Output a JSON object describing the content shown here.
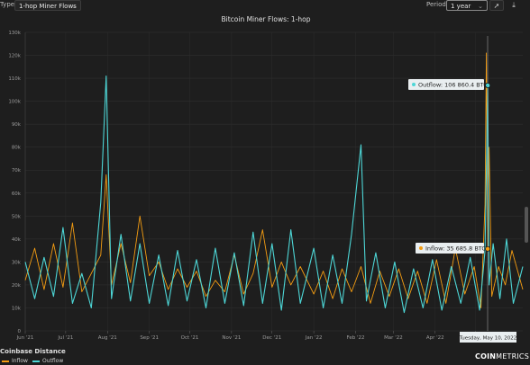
{
  "toolbar": {
    "type_label": "Type:",
    "type_value": "1-hop Miner Flows",
    "period_label": "Period:",
    "period_value": "1 year"
  },
  "legend": {
    "title": "Coinbase Distance",
    "items": [
      {
        "label": "Inflow",
        "color": "#f39c12"
      },
      {
        "label": "Outflow",
        "color": "#4dd6d6"
      }
    ]
  },
  "brand": {
    "prefix": "COIN",
    "suffix": "METRICS"
  },
  "tooltips": {
    "outflow": "Outflow: 106 860.4 BTC",
    "inflow": "Inflow: 35 685.8 BTC",
    "date": "Tuesday, May 10, 2022"
  },
  "chart_data": {
    "type": "line",
    "title": "Bitcoin Miner Flows: 1-hop",
    "xlabel": "",
    "ylabel": "",
    "ylim": [
      0,
      130000
    ],
    "y_ticks": [
      0,
      10000,
      20000,
      30000,
      40000,
      50000,
      60000,
      70000,
      80000,
      90000,
      100000,
      110000,
      120000,
      130000
    ],
    "y_tick_labels": [
      "0",
      "10k",
      "20k",
      "30k",
      "40k",
      "50k",
      "60k",
      "70k",
      "80k",
      "90k",
      "100k",
      "110k",
      "120k",
      "130k"
    ],
    "x_range": [
      "2021-06-01",
      "2022-06-05"
    ],
    "x_tick_dates": [
      "2021-06-01",
      "2021-07-01",
      "2021-08-01",
      "2021-09-01",
      "2021-10-01",
      "2021-11-01",
      "2021-12-01",
      "2022-01-01",
      "2022-02-01",
      "2022-03-01",
      "2022-04-01",
      "2022-05-01"
    ],
    "x_tick_labels": [
      "Jun '21",
      "Jul '21",
      "Aug '21",
      "Sep '21",
      "Oct '21",
      "Nov '21",
      "Dec '21",
      "Jan '22",
      "Feb '22",
      "Mar '22",
      "Apr '22",
      "May '22"
    ],
    "grid": true,
    "legend_position": "bottom-left",
    "series": [
      {
        "name": "Inflow",
        "color": "#f39c12",
        "points": [
          [
            "2021-06-01",
            22000
          ],
          [
            "2021-06-08",
            36000
          ],
          [
            "2021-06-15",
            18000
          ],
          [
            "2021-06-22",
            38000
          ],
          [
            "2021-06-29",
            19000
          ],
          [
            "2021-07-06",
            47000
          ],
          [
            "2021-07-13",
            17000
          ],
          [
            "2021-07-20",
            25000
          ],
          [
            "2021-07-27",
            33000
          ],
          [
            "2021-07-31",
            68000
          ],
          [
            "2021-08-04",
            20000
          ],
          [
            "2021-08-11",
            38000
          ],
          [
            "2021-08-18",
            21000
          ],
          [
            "2021-08-25",
            50000
          ],
          [
            "2021-09-01",
            24000
          ],
          [
            "2021-09-08",
            30000
          ],
          [
            "2021-09-15",
            18000
          ],
          [
            "2021-09-22",
            27000
          ],
          [
            "2021-09-29",
            19000
          ],
          [
            "2021-10-06",
            26000
          ],
          [
            "2021-10-13",
            15000
          ],
          [
            "2021-10-20",
            22000
          ],
          [
            "2021-10-27",
            17000
          ],
          [
            "2021-11-03",
            33000
          ],
          [
            "2021-11-10",
            16000
          ],
          [
            "2021-11-17",
            25000
          ],
          [
            "2021-11-24",
            44000
          ],
          [
            "2021-12-01",
            19000
          ],
          [
            "2021-12-08",
            30000
          ],
          [
            "2021-12-15",
            20000
          ],
          [
            "2021-12-22",
            28000
          ],
          [
            "2022-01-01",
            16000
          ],
          [
            "2022-01-08",
            26000
          ],
          [
            "2022-01-15",
            14000
          ],
          [
            "2022-01-22",
            27000
          ],
          [
            "2022-01-29",
            17000
          ],
          [
            "2022-02-05",
            28000
          ],
          [
            "2022-02-12",
            12000
          ],
          [
            "2022-02-19",
            26000
          ],
          [
            "2022-02-26",
            15000
          ],
          [
            "2022-03-05",
            27000
          ],
          [
            "2022-03-12",
            14000
          ],
          [
            "2022-03-19",
            26000
          ],
          [
            "2022-03-26",
            12000
          ],
          [
            "2022-04-02",
            31000
          ],
          [
            "2022-04-09",
            12000
          ],
          [
            "2022-04-16",
            36000
          ],
          [
            "2022-04-23",
            16000
          ],
          [
            "2022-04-30",
            28000
          ],
          [
            "2022-05-05",
            10000
          ],
          [
            "2022-05-08",
            55000
          ],
          [
            "2022-05-09",
            121000
          ],
          [
            "2022-05-10",
            35685.8
          ],
          [
            "2022-05-11",
            80000
          ],
          [
            "2022-05-13",
            15000
          ],
          [
            "2022-05-18",
            28000
          ],
          [
            "2022-05-23",
            20000
          ],
          [
            "2022-05-28",
            35000
          ],
          [
            "2022-06-05",
            18000
          ]
        ]
      },
      {
        "name": "Outflow",
        "color": "#4dd6d6",
        "points": [
          [
            "2021-06-01",
            30000
          ],
          [
            "2021-06-08",
            14000
          ],
          [
            "2021-06-15",
            32000
          ],
          [
            "2021-06-22",
            15000
          ],
          [
            "2021-06-29",
            45000
          ],
          [
            "2021-07-06",
            12000
          ],
          [
            "2021-07-13",
            25000
          ],
          [
            "2021-07-20",
            10000
          ],
          [
            "2021-07-27",
            56000
          ],
          [
            "2021-07-31",
            111000
          ],
          [
            "2021-08-04",
            14000
          ],
          [
            "2021-08-11",
            42000
          ],
          [
            "2021-08-18",
            13000
          ],
          [
            "2021-08-25",
            38000
          ],
          [
            "2021-09-01",
            12000
          ],
          [
            "2021-09-08",
            33000
          ],
          [
            "2021-09-15",
            11000
          ],
          [
            "2021-09-22",
            35000
          ],
          [
            "2021-09-29",
            13000
          ],
          [
            "2021-10-06",
            31000
          ],
          [
            "2021-10-13",
            10000
          ],
          [
            "2021-10-20",
            36000
          ],
          [
            "2021-10-27",
            12000
          ],
          [
            "2021-11-03",
            34000
          ],
          [
            "2021-11-10",
            11000
          ],
          [
            "2021-11-17",
            43000
          ],
          [
            "2021-11-24",
            12000
          ],
          [
            "2021-12-01",
            38000
          ],
          [
            "2021-12-08",
            9000
          ],
          [
            "2021-12-15",
            44000
          ],
          [
            "2021-12-22",
            12000
          ],
          [
            "2022-01-01",
            36000
          ],
          [
            "2022-01-08",
            10000
          ],
          [
            "2022-01-15",
            33000
          ],
          [
            "2022-01-22",
            12000
          ],
          [
            "2022-01-29",
            42000
          ],
          [
            "2022-02-05",
            81000
          ],
          [
            "2022-02-09",
            13000
          ],
          [
            "2022-02-16",
            34000
          ],
          [
            "2022-02-23",
            10000
          ],
          [
            "2022-03-02",
            30000
          ],
          [
            "2022-03-09",
            8000
          ],
          [
            "2022-03-16",
            27000
          ],
          [
            "2022-03-23",
            10000
          ],
          [
            "2022-03-30",
            31000
          ],
          [
            "2022-04-06",
            9000
          ],
          [
            "2022-04-13",
            28000
          ],
          [
            "2022-04-20",
            12000
          ],
          [
            "2022-04-27",
            32000
          ],
          [
            "2022-05-04",
            9000
          ],
          [
            "2022-05-08",
            35000
          ],
          [
            "2022-05-09",
            70000
          ],
          [
            "2022-05-10",
            106860.4
          ],
          [
            "2022-05-11",
            20000
          ],
          [
            "2022-05-14",
            38000
          ],
          [
            "2022-05-19",
            14000
          ],
          [
            "2022-05-24",
            40000
          ],
          [
            "2022-05-29",
            12000
          ],
          [
            "2022-06-05",
            28000
          ]
        ]
      }
    ]
  }
}
